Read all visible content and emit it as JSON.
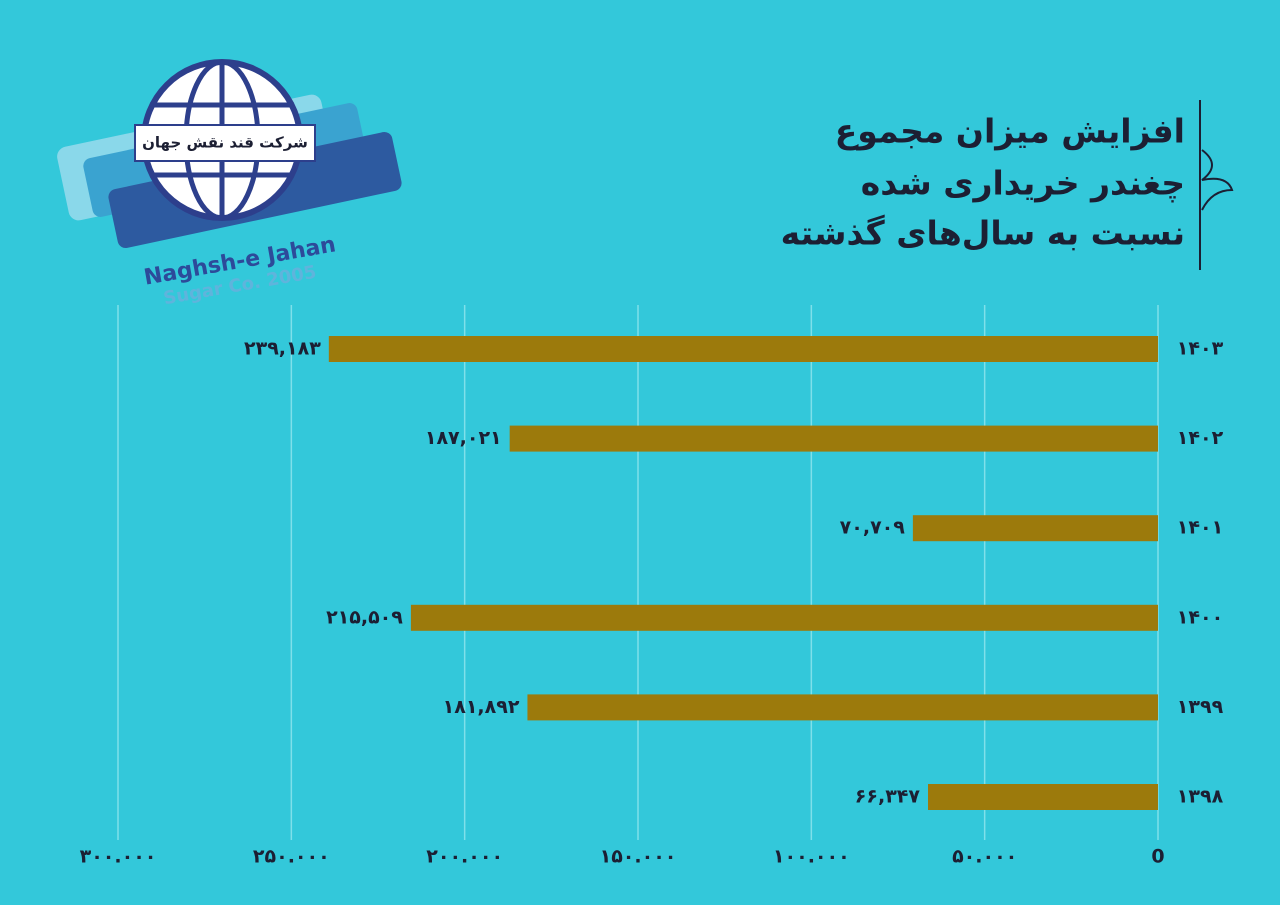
{
  "logo": {
    "name_fa": "شرکت قند نقش جهان",
    "name_en": "Naghsh-e Jahan",
    "subtitle_en": "Sugar Co. 2005"
  },
  "chart_data": {
    "type": "bar",
    "orientation": "horizontal",
    "x_reversed": true,
    "title": [
      "افزایش میزان مجموع",
      "چغندر خریداری شده",
      "نسبت به سال‌های گذشته"
    ],
    "categories": [
      "۱۴۰۳",
      "۱۴۰۲",
      "۱۴۰۱",
      "۱۴۰۰",
      "۱۳۹۹",
      "۱۳۹۸"
    ],
    "values": [
      239183,
      187021,
      70709,
      215509,
      181892,
      66347
    ],
    "value_labels": [
      "۲۳۹,۱۸۳",
      "۱۸۷,۰۲۱",
      "۷۰,۷۰۹",
      "۲۱۵,۵۰۹",
      "۱۸۱,۸۹۲",
      "۶۶,۳۴۷"
    ],
    "color": "#9c7a0c",
    "xlim": [
      0,
      300000
    ],
    "xticks": [
      0,
      {
        "value": 50000,
        "label": "۵۰.۰۰۰"
      },
      {
        "value": 100000,
        "label": "۱۰۰.۰۰۰"
      },
      {
        "value": 150000,
        "label": "۱۵۰.۰۰۰"
      },
      {
        "value": 200000,
        "label": "۲۰۰.۰۰۰"
      },
      {
        "value": 250000,
        "label": "۲۵۰.۰۰۰"
      },
      {
        "value": 300000,
        "label": "۳۰۰.۰۰۰"
      }
    ],
    "grid": true
  }
}
